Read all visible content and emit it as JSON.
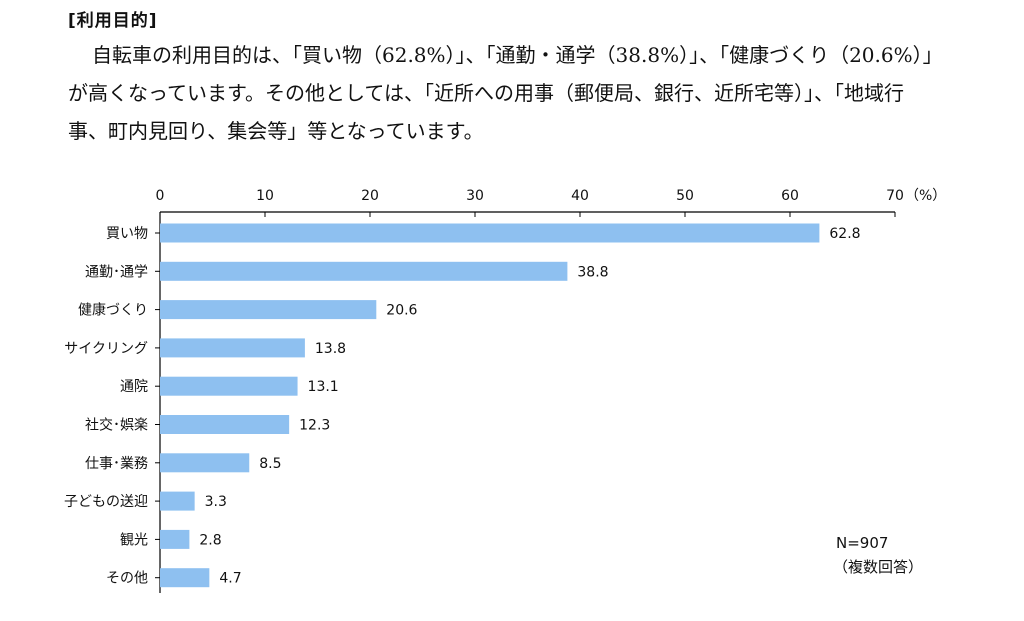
{
  "section_heading": "[利用目的]",
  "paragraph": {
    "line1": "自転車の利用目的は、「買い物（62.8%）」、「通勤・通学（38.8%）」、「健康づくり（20.6%）」",
    "line2": "が高くなっています。その他としては、「近所への用事（郵便局、銀行、近所宅等）」、「地域行",
    "line3": "事、町内見回り、集会等」等となっています。"
  },
  "chart_data": {
    "type": "bar",
    "orientation": "horizontal",
    "categories": [
      "買い物",
      "通勤･通学",
      "健康づくり",
      "サイクリング",
      "通院",
      "社交･娯楽",
      "仕事･業務",
      "子どもの送迎",
      "観光",
      "その他"
    ],
    "values": [
      62.8,
      38.8,
      20.6,
      13.8,
      13.1,
      12.3,
      8.5,
      3.3,
      2.8,
      4.7
    ],
    "xlim": [
      0,
      70
    ],
    "xticks": [
      0,
      10,
      20,
      30,
      40,
      50,
      60,
      70
    ],
    "x_unit": "（%）",
    "grid": false,
    "bar_color": "#8ec0f0",
    "sample_note": "N=907",
    "answer_note": "（複数回答）"
  }
}
